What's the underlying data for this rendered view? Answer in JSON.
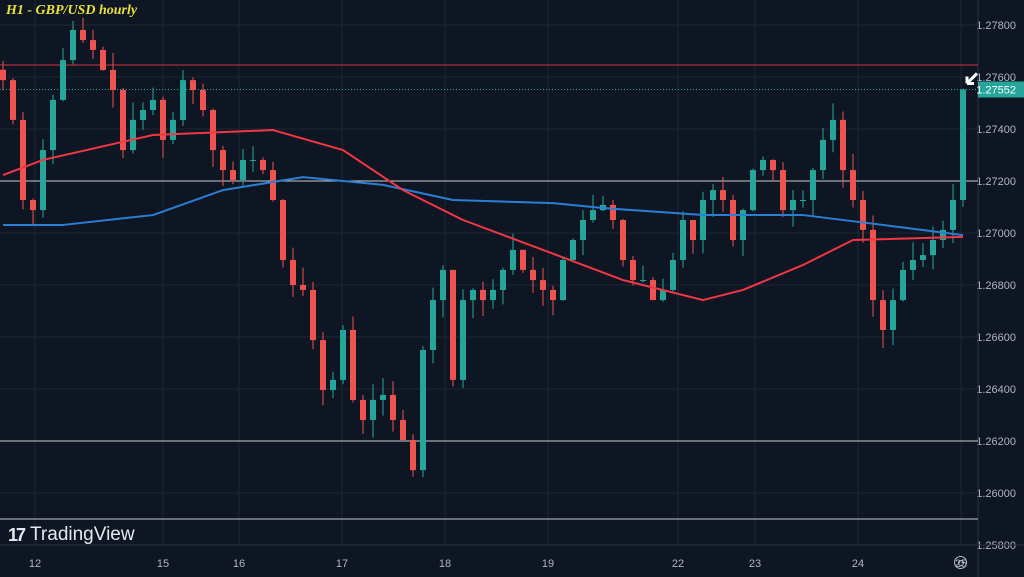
{
  "chart_data": {
    "type": "candlestick",
    "title": "H1 - GBP/USD hourly",
    "ylim": [
      1.2575,
      1.2788
    ],
    "y_ticks": [
      "1.27800",
      "1.27600",
      "1.27400",
      "1.27200",
      "1.27000",
      "1.26800",
      "1.26600",
      "1.26400",
      "1.26200",
      "1.26000",
      "1.25800"
    ],
    "y_tick_values": [
      1.278,
      1.276,
      1.274,
      1.272,
      1.27,
      1.268,
      1.266,
      1.264,
      1.262,
      1.26,
      1.258
    ],
    "x_ticks": [
      "12",
      "15",
      "16",
      "17",
      "18",
      "19",
      "22",
      "23",
      "24",
      "25"
    ],
    "x_tick_candle_index": [
      3.2,
      16,
      23.6,
      33.9,
      44.2,
      54.5,
      67.5,
      75.2,
      85.5,
      95.8
    ],
    "current_price": {
      "label": "1.27552",
      "value": 1.27552,
      "color": "#26a69a"
    },
    "horizontal_lines": [
      {
        "value": 1.27646,
        "color": "#f23645"
      },
      {
        "value": 1.272,
        "color": "#e6e6e6"
      },
      {
        "value": 1.262,
        "color": "#e6e6e6"
      },
      {
        "value": 1.259,
        "color": "#e6e6e6"
      }
    ],
    "closes": [
      1.27588,
      1.27435,
      1.27127,
      1.27088,
      1.27319,
      1.27512,
      1.27665,
      1.27781,
      1.27742,
      1.27704,
      1.27627,
      1.2755,
      1.27319,
      1.27435,
      1.27473,
      1.27512,
      1.27358,
      1.27435,
      1.27588,
      1.2755,
      1.27473,
      1.27319,
      1.27242,
      1.27204,
      1.27281,
      1.27281,
      1.27242,
      1.27127,
      1.26896,
      1.268,
      1.26781,
      1.26588,
      1.26396,
      1.26435,
      1.26627,
      1.26358,
      1.26281,
      1.26358,
      1.26377,
      1.26281,
      1.26204,
      1.26088,
      1.2655,
      1.26742,
      1.26858,
      1.26435,
      1.26742,
      1.26781,
      1.26742,
      1.26781,
      1.26858,
      1.26935,
      1.26858,
      1.26819,
      1.26781,
      1.26742,
      1.26896,
      1.26973,
      1.2705,
      1.27088,
      1.27108,
      1.2705,
      1.26896,
      1.26819,
      1.26819,
      1.26742,
      1.26781,
      1.26896,
      1.2705,
      1.26973,
      1.27127,
      1.27165,
      1.27127,
      1.26973,
      1.27088,
      1.27242,
      1.27281,
      1.27242,
      1.27088,
      1.27127,
      1.27127,
      1.27242,
      1.27358,
      1.27435,
      1.27242,
      1.27127,
      1.27012,
      1.26742,
      1.26627,
      1.26742,
      1.26858,
      1.26896,
      1.26915,
      1.26973,
      1.27012,
      1.27127,
      1.27552
    ],
    "series": [
      {
        "name": "MA blue",
        "color": "#2a7fd4",
        "points": [
          [
            0,
            1.27031
          ],
          [
            6,
            1.27031
          ],
          [
            15,
            1.27069
          ],
          [
            22,
            1.27165
          ],
          [
            30,
            1.27215
          ],
          [
            38,
            1.27185
          ],
          [
            45,
            1.27127
          ],
          [
            55,
            1.27115
          ],
          [
            60,
            1.27096
          ],
          [
            70,
            1.27069
          ],
          [
            80,
            1.27069
          ],
          [
            88,
            1.27031
          ],
          [
            96,
            1.26992
          ]
        ]
      },
      {
        "name": "MA red",
        "color": "#f23645",
        "points": [
          [
            0,
            1.27223
          ],
          [
            4,
            1.27281
          ],
          [
            15,
            1.27377
          ],
          [
            27,
            1.27396
          ],
          [
            34,
            1.27319
          ],
          [
            40,
            1.27165
          ],
          [
            46,
            1.2705
          ],
          [
            54,
            1.26935
          ],
          [
            62,
            1.26819
          ],
          [
            70,
            1.26742
          ],
          [
            74,
            1.26781
          ],
          [
            80,
            1.26877
          ],
          [
            85,
            1.26973
          ],
          [
            96,
            1.26985
          ]
        ]
      }
    ],
    "up_color": "#26a69a",
    "down_color": "#ef5350"
  },
  "branding": {
    "name": "TradingView"
  }
}
